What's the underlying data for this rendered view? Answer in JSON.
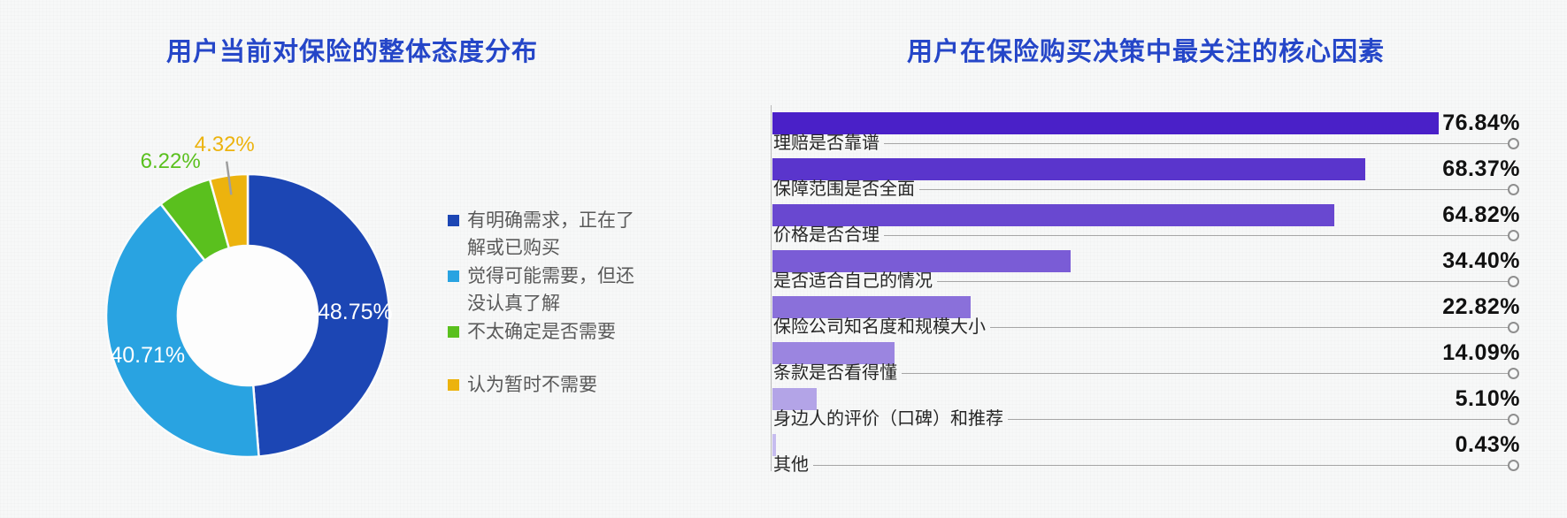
{
  "page": {
    "background_color": "#f7f8f8",
    "title_color": "#2546c8"
  },
  "chart_data": [
    {
      "type": "pie",
      "subtype": "donut",
      "title": "用户当前对保险的整体态度分布",
      "legend_position": "right",
      "slices": [
        {
          "label": "有明确需求，正在了解或已购买",
          "value": 48.75,
          "display": "48.75%",
          "color": "#1c46b4",
          "label_position": "inside",
          "leader_line": false
        },
        {
          "label": "觉得可能需要，但还没认真了解",
          "value": 40.71,
          "display": "40.71%",
          "color": "#29a3e1",
          "label_position": "inside",
          "leader_line": false
        },
        {
          "label": "不太确定是否需要",
          "value": 6.22,
          "display": "6.22%",
          "color": "#5ac01e",
          "label_position": "outside",
          "leader_line": false
        },
        {
          "label": "认为暂时不需要",
          "value": 4.32,
          "display": "4.32%",
          "color": "#ecb30e",
          "label_position": "outside",
          "leader_line": true
        }
      ]
    },
    {
      "type": "bar",
      "orientation": "horizontal",
      "title": "用户在保险购买决策中最关注的核心因素",
      "xlim": [
        0,
        100
      ],
      "grid": false,
      "bars": [
        {
          "label": "理赔是否靠谱",
          "value": 76.84,
          "display": "76.84%",
          "color": "#4a20c8"
        },
        {
          "label": "保障范围是否全面",
          "value": 68.37,
          "display": "68.37%",
          "color": "#5a35cc"
        },
        {
          "label": "价格是否合理",
          "value": 64.82,
          "display": "64.82%",
          "color": "#6948d0"
        },
        {
          "label": "是否适合自己的情况",
          "value": 34.4,
          "display": "34.40%",
          "color": "#7a5cd6"
        },
        {
          "label": "保险公司知名度和规模大小",
          "value": 22.82,
          "display": "22.82%",
          "color": "#8a70da"
        },
        {
          "label": "条款是否看得懂",
          "value": 14.09,
          "display": "14.09%",
          "color": "#9b85e0"
        },
        {
          "label": "身边人的评价（口碑）和推荐",
          "value": 5.1,
          "display": "5.10%",
          "color": "#b3a4e7"
        },
        {
          "label": "其他",
          "value": 0.43,
          "display": "0.43%",
          "color": "#c6bcef"
        }
      ]
    }
  ]
}
